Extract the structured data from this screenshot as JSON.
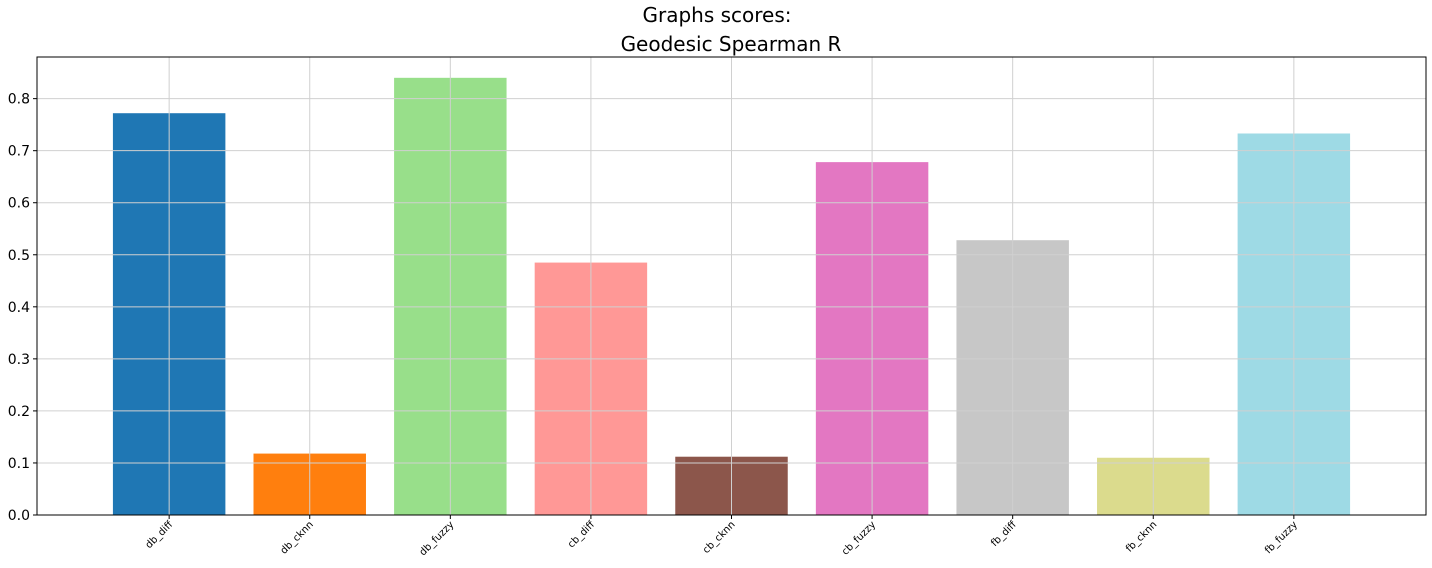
{
  "chart_data": {
    "type": "bar",
    "suptitle": "Graphs scores:",
    "title": "Geodesic Spearman R",
    "xlabel": "",
    "ylabel": "",
    "categories": [
      "db_diff",
      "db_cknn",
      "db_fuzzy",
      "cb_diff",
      "cb_cknn",
      "cb_fuzzy",
      "fb_diff",
      "fb_cknn",
      "fb_fuzzy"
    ],
    "values": [
      0.772,
      0.118,
      0.84,
      0.485,
      0.112,
      0.678,
      0.528,
      0.11,
      0.733
    ],
    "colors": [
      "#1f77b4",
      "#ff7f0e",
      "#98df8a",
      "#ff9896",
      "#8c564b",
      "#e377c2",
      "#c7c7c7",
      "#dbdb8d",
      "#9edae5"
    ],
    "ylim": [
      0,
      0.88
    ],
    "yticks": [
      0.0,
      0.1,
      0.2,
      0.3,
      0.4,
      0.5,
      0.6,
      0.7,
      0.8
    ],
    "ytick_labels": [
      "0.0",
      "0.1",
      "0.2",
      "0.3",
      "0.4",
      "0.5",
      "0.6",
      "0.7",
      "0.8"
    ],
    "grid": true,
    "legend": "none"
  }
}
